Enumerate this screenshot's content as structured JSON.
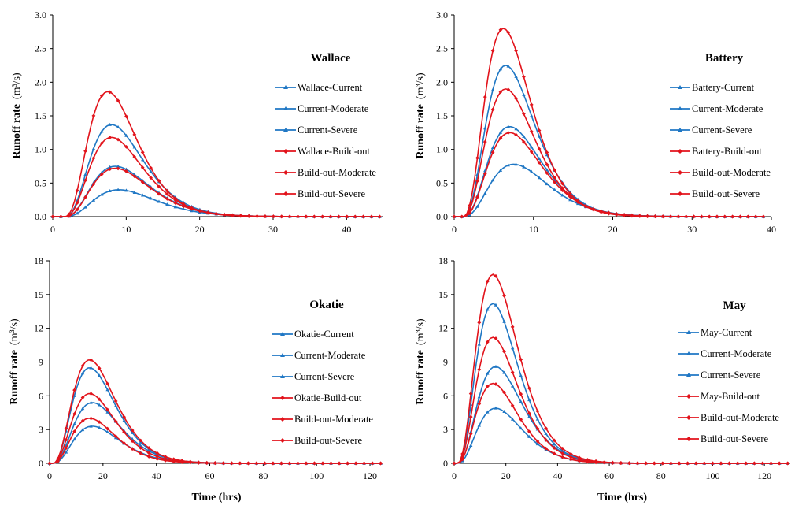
{
  "figure": {
    "xlabel": "Time (hrs)"
  },
  "colors": {
    "blue": "#1F77C4",
    "red": "#E2131B",
    "axis": "#000000"
  },
  "chart_data": [
    {
      "type": "line",
      "title": "Wallace",
      "xlabel": "",
      "ylabel": "Runoff rate",
      "ylabel_unit": "(m³/s)",
      "xlim": [
        0,
        45
      ],
      "ylim": [
        0,
        3.0
      ],
      "xticks": [
        0,
        10,
        20,
        30,
        40
      ],
      "xtick_labels": [
        "0",
        "10",
        "20",
        "30",
        "40"
      ],
      "yticks": [
        0,
        0.5,
        1.0,
        1.5,
        2.0,
        2.5,
        3.0
      ],
      "ytick_labels": [
        "0.0",
        "0.5",
        "1.0",
        "1.5",
        "2.0",
        "2.5",
        "3.0"
      ],
      "curve": {
        "start": 1.5,
        "end": 44.5,
        "shape": 3.2
      },
      "series": [
        {
          "name": "Wallace-Current",
          "color": "blue",
          "peak": 0.4,
          "peak_time": 9.0
        },
        {
          "name": "Current-Moderate",
          "color": "blue",
          "peak": 0.75,
          "peak_time": 8.5
        },
        {
          "name": "Current-Severe",
          "color": "blue",
          "peak": 1.37,
          "peak_time": 8.0
        },
        {
          "name": "Wallace-Build-out",
          "color": "red",
          "peak": 1.18,
          "peak_time": 8.0
        },
        {
          "name": "Build-out-Moderate",
          "color": "red",
          "peak": 0.72,
          "peak_time": 8.5
        },
        {
          "name": "Build-out-Severe",
          "color": "red",
          "peak": 1.86,
          "peak_time": 7.5
        }
      ]
    },
    {
      "type": "line",
      "title": "Battery",
      "xlabel": "",
      "ylabel": "Runoff rate",
      "ylabel_unit": "(m³/s)",
      "xlim": [
        0,
        40
      ],
      "ylim": [
        0,
        3.0
      ],
      "xticks": [
        0,
        10,
        20,
        30,
        40
      ],
      "xtick_labels": [
        "0",
        "10",
        "20",
        "30",
        "40"
      ],
      "yticks": [
        0,
        0.5,
        1.0,
        1.5,
        2.0,
        2.5,
        3.0
      ],
      "ytick_labels": [
        "0.0",
        "0.5",
        "1.0",
        "1.5",
        "2.0",
        "2.5",
        "3.0"
      ],
      "curve": {
        "start": 1.0,
        "end": 39,
        "shape": 3.2
      },
      "series": [
        {
          "name": "Battery-Current",
          "color": "blue",
          "peak": 0.78,
          "peak_time": 7.5
        },
        {
          "name": "Current-Moderate",
          "color": "blue",
          "peak": 1.34,
          "peak_time": 7.0
        },
        {
          "name": "Current-Severe",
          "color": "blue",
          "peak": 2.25,
          "peak_time": 6.5
        },
        {
          "name": "Battery-Build-out",
          "color": "red",
          "peak": 1.9,
          "peak_time": 6.5
        },
        {
          "name": "Build-out-Moderate",
          "color": "red",
          "peak": 1.25,
          "peak_time": 7.0
        },
        {
          "name": "Build-out-Severe",
          "color": "red",
          "peak": 2.8,
          "peak_time": 6.2
        }
      ]
    },
    {
      "type": "line",
      "title": "Okatie",
      "xlabel": "Time (hrs)",
      "ylabel": "Runoff rate",
      "ylabel_unit": "(m³/s)",
      "xlim": [
        0,
        125
      ],
      "ylim": [
        0,
        18
      ],
      "xticks": [
        0,
        20,
        40,
        60,
        80,
        100,
        120
      ],
      "xtick_labels": [
        "0",
        "20",
        "40",
        "60",
        "80",
        "100",
        "120"
      ],
      "yticks": [
        0,
        3,
        6,
        9,
        12,
        15,
        18
      ],
      "ytick_labels": [
        "0",
        "3",
        "6",
        "9",
        "12",
        "15",
        "18"
      ],
      "curve": {
        "start": 1.0,
        "end": 124,
        "shape": 3.0
      },
      "series": [
        {
          "name": "Okatie-Current",
          "color": "blue",
          "peak": 3.3,
          "peak_time": 16
        },
        {
          "name": "Current-Moderate",
          "color": "blue",
          "peak": 5.4,
          "peak_time": 16
        },
        {
          "name": "Current-Severe",
          "color": "blue",
          "peak": 8.5,
          "peak_time": 15
        },
        {
          "name": "Okatie-Build-out",
          "color": "red",
          "peak": 6.2,
          "peak_time": 15
        },
        {
          "name": "Build-out-Moderate",
          "color": "red",
          "peak": 4.0,
          "peak_time": 15
        },
        {
          "name": "Build-out-Severe",
          "color": "red",
          "peak": 9.2,
          "peak_time": 15
        }
      ]
    },
    {
      "type": "line",
      "title": "May",
      "xlabel": "Time (hrs)",
      "ylabel": "Runoff rate",
      "ylabel_unit": "(m³/s)",
      "xlim": [
        0,
        130
      ],
      "ylim": [
        0,
        18
      ],
      "xticks": [
        0,
        20,
        40,
        60,
        80,
        100,
        120
      ],
      "xtick_labels": [
        "0",
        "20",
        "40",
        "60",
        "80",
        "100",
        "120"
      ],
      "yticks": [
        0,
        3,
        6,
        9,
        12,
        15,
        18
      ],
      "ytick_labels": [
        "0",
        "3",
        "6",
        "9",
        "12",
        "15",
        "18"
      ],
      "curve": {
        "start": 1.0,
        "end": 129,
        "shape": 3.0
      },
      "series": [
        {
          "name": "May-Current",
          "color": "blue",
          "peak": 4.9,
          "peak_time": 16
        },
        {
          "name": "Current-Moderate",
          "color": "blue",
          "peak": 8.6,
          "peak_time": 16
        },
        {
          "name": "Current-Severe",
          "color": "blue",
          "peak": 14.2,
          "peak_time": 15
        },
        {
          "name": "May-Build-out",
          "color": "red",
          "peak": 11.2,
          "peak_time": 15
        },
        {
          "name": "Build-out-Moderate",
          "color": "red",
          "peak": 7.1,
          "peak_time": 15
        },
        {
          "name": "Build-out-Severe",
          "color": "red",
          "peak": 16.8,
          "peak_time": 15
        }
      ]
    }
  ]
}
